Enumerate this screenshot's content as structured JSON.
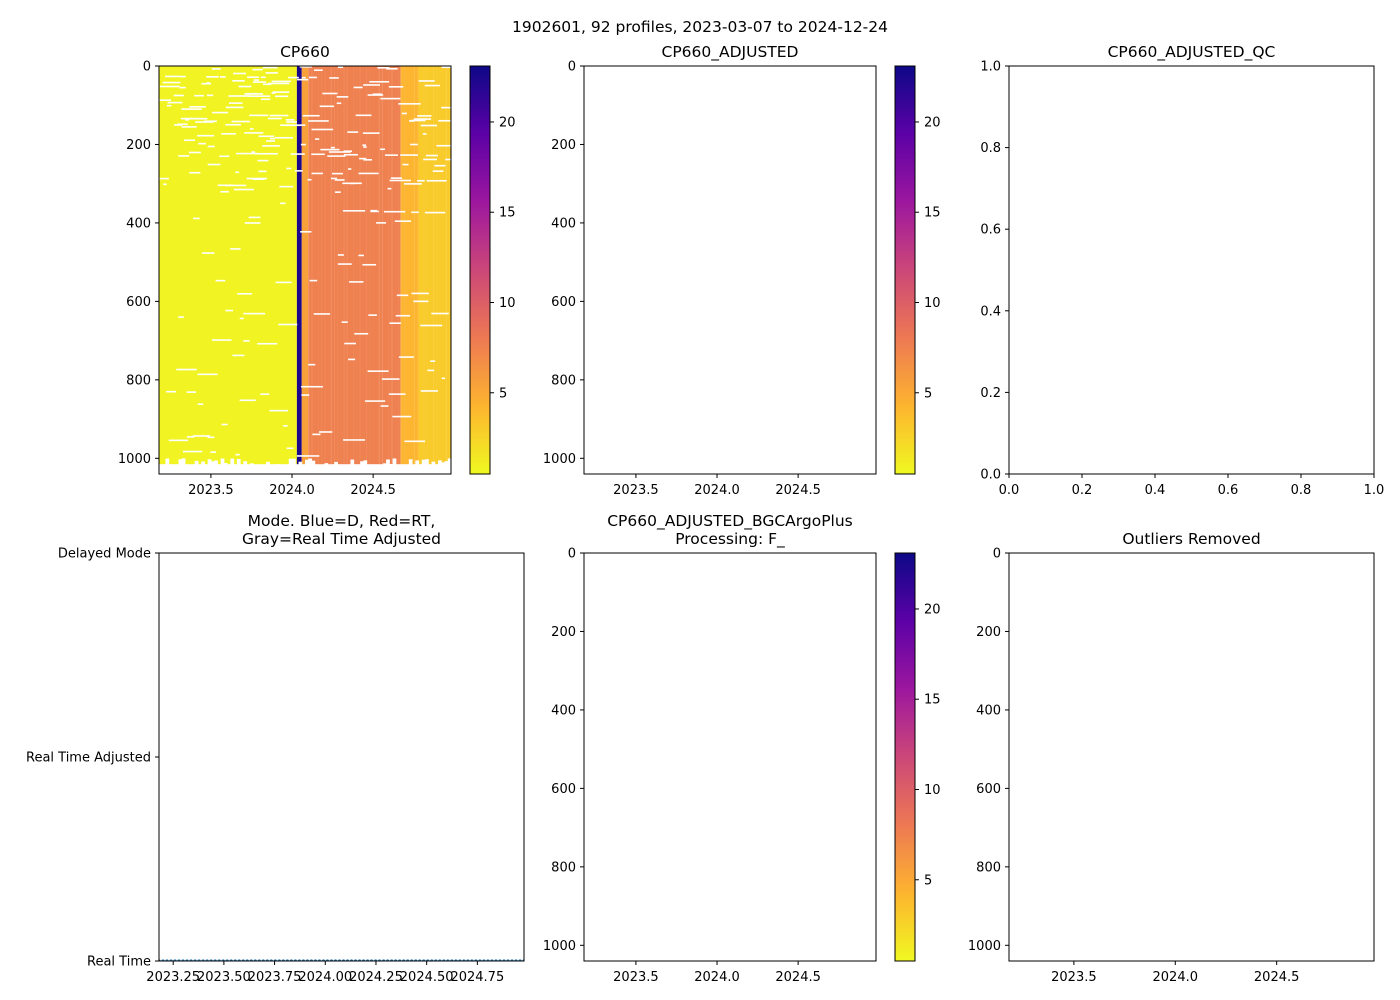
{
  "suptitle": "1902601, 92 profiles, 2023-03-07 to 2024-12-24",
  "colorscale": [
    "#f0f921",
    "#fdb42f",
    "#ed7953",
    "#cc4778",
    "#9c179e",
    "#5c01a6",
    "#0d0887"
  ],
  "chart_data": [
    {
      "type": "heatmap",
      "title": "CP660",
      "xlim": [
        2023.18,
        2024.98
      ],
      "xticks": [
        2023.5,
        2024.0,
        2024.5
      ],
      "xtick_labels": [
        "2023.5",
        "2024.0",
        "2024.5"
      ],
      "ylim": [
        1040,
        0
      ],
      "yticks": [
        0,
        200,
        400,
        600,
        800,
        1000
      ],
      "ytick_labels": [
        "0",
        "200",
        "400",
        "600",
        "800",
        "1000"
      ],
      "colorbar": {
        "range": [
          0.5,
          23.1
        ],
        "ticks": [
          5,
          10,
          15,
          20
        ],
        "tick_labels": [
          "5",
          "10",
          "15",
          "20"
        ]
      },
      "data_regions": [
        {
          "x_start": 2023.18,
          "x_end": 2024.03,
          "value": 0.8
        },
        {
          "x_start": 2024.03,
          "x_end": 2024.06,
          "value": 22.5
        },
        {
          "x_start": 2024.06,
          "x_end": 2024.1,
          "value": 5.5
        },
        {
          "x_start": 2024.1,
          "x_end": 2024.67,
          "value": 7.6
        },
        {
          "x_start": 2024.67,
          "x_end": 2024.78,
          "value": 4.2
        },
        {
          "x_start": 2024.78,
          "x_end": 2024.98,
          "value": 3.0
        }
      ]
    },
    {
      "type": "heatmap",
      "title": "CP660_ADJUSTED",
      "xlim": [
        2023.18,
        2024.98
      ],
      "xticks": [
        2023.5,
        2024.0,
        2024.5
      ],
      "xtick_labels": [
        "2023.5",
        "2024.0",
        "2024.5"
      ],
      "ylim": [
        1040,
        0
      ],
      "yticks": [
        0,
        200,
        400,
        600,
        800,
        1000
      ],
      "ytick_labels": [
        "0",
        "200",
        "400",
        "600",
        "800",
        "1000"
      ],
      "colorbar": {
        "range": [
          0.5,
          23.1
        ],
        "ticks": [
          5,
          10,
          15,
          20
        ],
        "tick_labels": [
          "5",
          "10",
          "15",
          "20"
        ]
      },
      "data_regions": []
    },
    {
      "type": "scatter",
      "title": "CP660_ADJUSTED_QC",
      "xlim": [
        0,
        1
      ],
      "xticks": [
        0,
        0.2,
        0.4,
        0.6,
        0.8,
        1.0
      ],
      "xtick_labels": [
        "0.0",
        "0.2",
        "0.4",
        "0.6",
        "0.8",
        "1.0"
      ],
      "ylim": [
        0,
        1
      ],
      "yticks": [
        0,
        0.2,
        0.4,
        0.6,
        0.8,
        1.0
      ],
      "ytick_labels": [
        "0.0",
        "0.2",
        "0.4",
        "0.6",
        "0.8",
        "1.0"
      ],
      "points": []
    },
    {
      "type": "scatter",
      "title_lines": [
        "Mode. Blue=D, Red=RT,",
        "Gray=Real Time Adjusted"
      ],
      "xlim": [
        2023.18,
        2024.98
      ],
      "xticks": [
        2023.25,
        2023.5,
        2023.75,
        2024.0,
        2024.25,
        2024.5,
        2024.75
      ],
      "xtick_labels": [
        "2023.25",
        "2023.50",
        "2023.75",
        "2024.00",
        "2024.25",
        "2024.50",
        "2024.75"
      ],
      "ylim": [
        0,
        2
      ],
      "yticks": [
        2,
        1,
        0
      ],
      "ytick_labels": [
        "Delayed Mode",
        "Real Time Adjusted",
        "Real Time"
      ],
      "series": [
        {
          "name": "Real Time",
          "color": "#1f77b4",
          "y": 0,
          "x_start": 2023.18,
          "x_end": 2024.98,
          "count": 92
        }
      ]
    },
    {
      "type": "heatmap",
      "title_lines": [
        "CP660_ADJUSTED_BGCArgoPlus",
        "Processing: F_"
      ],
      "xlim": [
        2023.18,
        2024.98
      ],
      "xticks": [
        2023.5,
        2024.0,
        2024.5
      ],
      "xtick_labels": [
        "2023.5",
        "2024.0",
        "2024.5"
      ],
      "ylim": [
        1040,
        0
      ],
      "yticks": [
        0,
        200,
        400,
        600,
        800,
        1000
      ],
      "ytick_labels": [
        "0",
        "200",
        "400",
        "600",
        "800",
        "1000"
      ],
      "colorbar": {
        "range": [
          0.5,
          23.1
        ],
        "ticks": [
          5,
          10,
          15,
          20
        ],
        "tick_labels": [
          "5",
          "10",
          "15",
          "20"
        ]
      },
      "data_regions": []
    },
    {
      "type": "heatmap",
      "title": "Outliers Removed",
      "xlim": [
        2023.18,
        2024.98
      ],
      "xticks": [
        2023.5,
        2024.0,
        2024.5
      ],
      "xtick_labels": [
        "2023.5",
        "2024.0",
        "2024.5"
      ],
      "ylim": [
        1040,
        0
      ],
      "yticks": [
        0,
        200,
        400,
        600,
        800,
        1000
      ],
      "ytick_labels": [
        "0",
        "200",
        "400",
        "600",
        "800",
        "1000"
      ],
      "data_regions": []
    }
  ]
}
